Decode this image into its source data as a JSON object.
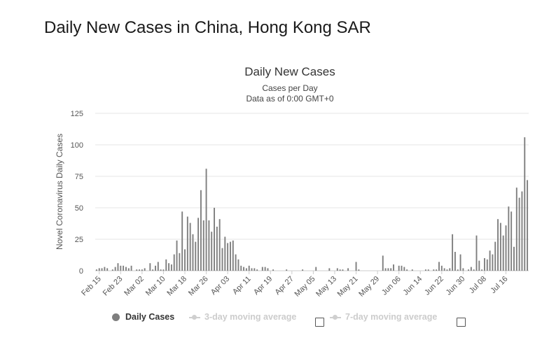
{
  "page": {
    "title": "Daily New Cases in China, Hong Kong SAR"
  },
  "colors": {
    "bar": "#7f7f7f",
    "axis_text": "#555555",
    "grid": "#e6e6e6",
    "inactive": "#cccccc"
  },
  "legend": [
    {
      "label": "Daily Cases",
      "active": true
    },
    {
      "label": "3-day moving average",
      "active": false
    },
    {
      "label": "7-day moving average",
      "active": false
    }
  ],
  "chart_data": {
    "type": "bar",
    "title": "Daily New Cases",
    "subtitle_lines": [
      "Cases per Day",
      "Data as of 0:00 GMT+0"
    ],
    "ylabel": "Novel Coronavirus Daily Cases",
    "xlabel": "",
    "ylim": [
      0,
      125
    ],
    "yticks": [
      0,
      25,
      50,
      75,
      100,
      125
    ],
    "grid": true,
    "legend_position": "bottom",
    "x_tick_labels": [
      "Feb 15",
      "Feb 23",
      "Mar 02",
      "Mar 10",
      "Mar 18",
      "Mar 26",
      "Apr 03",
      "Apr 11",
      "Apr 19",
      "Apr 27",
      "May 05",
      "May 13",
      "May 21",
      "May 29",
      "Jun 06",
      "Jun 14",
      "Jun 22",
      "Jun 30",
      "Jul 08",
      "Jul 16"
    ],
    "series": [
      {
        "name": "Daily Cases",
        "start_date": "2020-02-14",
        "values": [
          1,
          2,
          2,
          3,
          2,
          0,
          1,
          3,
          6,
          4,
          4,
          3,
          2,
          4,
          0,
          1,
          1,
          1,
          2,
          0,
          6,
          1,
          4,
          7,
          1,
          1,
          9,
          6,
          5,
          13,
          24,
          14,
          47,
          17,
          43,
          38,
          29,
          23,
          42,
          64,
          40,
          81,
          40,
          31,
          50,
          35,
          41,
          18,
          27,
          22,
          23,
          24,
          13,
          9,
          4,
          3,
          2,
          4,
          2,
          2,
          1,
          0,
          3,
          3,
          2,
          0,
          1,
          0,
          0,
          0,
          0,
          1,
          0,
          0,
          0,
          0,
          0,
          1,
          0,
          0,
          0,
          0,
          3,
          0,
          0,
          0,
          0,
          2,
          0,
          0,
          2,
          1,
          1,
          0,
          2,
          0,
          0,
          7,
          1,
          0,
          0,
          0,
          0,
          0,
          0,
          0,
          0,
          12,
          2,
          2,
          2,
          5,
          0,
          4,
          4,
          3,
          1,
          0,
          1,
          0,
          0,
          0,
          0,
          1,
          1,
          0,
          1,
          1,
          7,
          4,
          2,
          1,
          2,
          29,
          15,
          1,
          13,
          2,
          0,
          1,
          3,
          1,
          28,
          8,
          1,
          10,
          9,
          16,
          13,
          23,
          41,
          38,
          28,
          36,
          51,
          47,
          19,
          66,
          58,
          63,
          106,
          72
        ]
      }
    ]
  }
}
